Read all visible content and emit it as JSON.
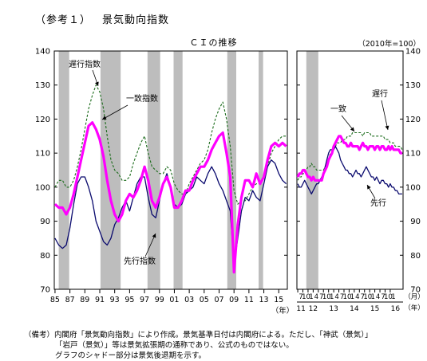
{
  "page": {
    "ref": "（参考１）",
    "title": "景気動向指数",
    "chart_heading": "ＣＩの推移",
    "base_note": "（2010年=100）",
    "year_unit": "（年）",
    "month_unit": "（月）",
    "notes": [
      "（備考）内閣府「景気動向指数」により作成。景気基準日付は内閣府による。ただし、「神武（景気）」",
      "「岩戸（景気）」等は景気拡張期の通称であり、公式のものではない。",
      "グラフのシャドー部分は景気後退期を示す。"
    ]
  },
  "colors": {
    "coincident": "#ff00ff",
    "lagging": "#1a6b1a",
    "leading": "#0a0a6e",
    "shade": "#bdbdbd"
  },
  "chart_data": [
    {
      "type": "line",
      "title": "ＣＩの推移",
      "x": [
        1985.0,
        1985.5,
        1986.0,
        1986.5,
        1987.0,
        1987.5,
        1988.0,
        1988.5,
        1989.0,
        1989.5,
        1990.0,
        1990.5,
        1991.0,
        1991.5,
        1992.0,
        1992.5,
        1993.0,
        1993.5,
        1994.0,
        1994.5,
        1995.0,
        1995.5,
        1996.0,
        1996.5,
        1997.0,
        1997.5,
        1998.0,
        1998.5,
        1999.0,
        1999.5,
        2000.0,
        2000.5,
        2001.0,
        2001.5,
        2002.0,
        2002.5,
        2003.0,
        2003.5,
        2004.0,
        2004.5,
        2005.0,
        2005.5,
        2006.0,
        2006.5,
        2007.0,
        2007.5,
        2008.0,
        2008.5,
        2009.0,
        2009.5,
        2010.0,
        2010.5,
        2011.0,
        2011.5,
        2012.0,
        2012.5,
        2013.0,
        2013.5,
        2014.0,
        2014.5,
        2015.0,
        2015.5,
        2016.0
      ],
      "x_tick_labels": [
        "85",
        "87",
        "89",
        "91",
        "93",
        "95",
        "97",
        "99",
        "01",
        "03",
        "05",
        "07",
        "09",
        "11",
        "13",
        "15"
      ],
      "ylim": [
        70,
        140
      ],
      "y_ticks": [
        70,
        80,
        90,
        100,
        110,
        120,
        130,
        140
      ],
      "recessions": [
        [
          1985.5,
          1986.9
        ],
        [
          1991.1,
          1993.8
        ],
        [
          1997.4,
          1999.1
        ],
        [
          2000.9,
          2002.1
        ],
        [
          2008.1,
          2009.3
        ],
        [
          2012.3,
          2012.9
        ]
      ],
      "series": [
        {
          "name": "一致指数",
          "values": [
            95,
            94,
            94,
            92,
            94,
            98,
            103,
            108,
            113,
            118,
            119,
            117,
            114,
            109,
            102,
            96,
            92,
            90,
            92,
            96,
            98,
            97,
            99,
            102,
            106,
            102,
            96,
            94,
            97,
            101,
            103,
            100,
            94,
            94,
            96,
            99,
            99,
            102,
            104,
            106,
            106,
            108,
            111,
            113,
            115,
            116,
            110,
            103,
            75,
            89,
            97,
            102,
            102,
            100,
            104,
            101,
            103,
            108,
            112,
            113,
            112,
            113,
            112
          ]
        },
        {
          "name": "遅行指数",
          "values": [
            100,
            102,
            102,
            100,
            100,
            102,
            106,
            111,
            117,
            123,
            127,
            130,
            128,
            123,
            115,
            108,
            105,
            104,
            102,
            102,
            103,
            107,
            110,
            113,
            115,
            110,
            106,
            105,
            104,
            104,
            106,
            105,
            101,
            99,
            98,
            98,
            101,
            103,
            105,
            107,
            108,
            111,
            116,
            120,
            123,
            125,
            120,
            112,
            99,
            95,
            96,
            96,
            98,
            100,
            101,
            101,
            103,
            106,
            110,
            112,
            114,
            115,
            115
          ]
        },
        {
          "name": "先行指数",
          "values": [
            85,
            83,
            82,
            83,
            88,
            95,
            101,
            103,
            103,
            100,
            96,
            90,
            87,
            84,
            83,
            85,
            89,
            91,
            94,
            96,
            93,
            97,
            101,
            103,
            103,
            97,
            92,
            91,
            96,
            101,
            104,
            100,
            95,
            94,
            95,
            98,
            99,
            100,
            103,
            102,
            101,
            104,
            106,
            104,
            101,
            99,
            96,
            93,
            77,
            85,
            93,
            97,
            96,
            99,
            97,
            96,
            101,
            106,
            108,
            107,
            104,
            102,
            101
          ]
        }
      ],
      "annotations": [
        "遅行指数",
        "一致指数",
        "先行指数"
      ]
    },
    {
      "type": "line",
      "x": [
        0,
        1,
        2,
        3,
        4,
        5,
        6,
        7,
        8,
        9,
        10,
        11,
        12,
        13,
        14,
        15,
        16,
        17,
        18,
        19,
        20,
        21,
        22,
        23,
        24,
        25,
        26,
        27,
        28,
        29,
        30,
        31,
        32,
        33,
        34,
        35,
        36,
        37,
        38,
        39,
        40,
        41,
        42,
        43,
        44,
        45,
        46,
        47,
        48,
        49,
        50,
        51,
        52,
        53,
        54,
        55,
        56,
        57,
        58,
        59,
        60,
        61
      ],
      "x_tick_labels": [
        "7",
        "10",
        "1",
        "4",
        "7",
        "10",
        "1",
        "4",
        "7",
        "10",
        "1",
        "4",
        "7",
        "10",
        "1",
        "4",
        "7",
        "10",
        "1"
      ],
      "x_year_labels": [
        "11",
        "12",
        "13",
        "14",
        "15",
        "16"
      ],
      "ylim": [
        70,
        140
      ],
      "y_ticks": [
        70,
        80,
        90,
        100,
        110,
        120,
        130,
        140
      ],
      "recessions": [
        [
          5,
          12
        ]
      ],
      "series": [
        {
          "name": "一致",
          "values": [
            103,
            104,
            104,
            105,
            105,
            104,
            103,
            103,
            102,
            103,
            102,
            102,
            102,
            102,
            102,
            104,
            105,
            106,
            108,
            109,
            110,
            112,
            113,
            114,
            115,
            115,
            114,
            113,
            113,
            112,
            112,
            113,
            112,
            112,
            112,
            112,
            111,
            112,
            113,
            112,
            112,
            111,
            112,
            112,
            112,
            111,
            112,
            112,
            111,
            112,
            112,
            111,
            111,
            112,
            111,
            112,
            111,
            111,
            111,
            111,
            110,
            110
          ]
        },
        {
          "name": "遅行",
          "values": [
            102,
            103,
            103,
            104,
            104,
            105,
            106,
            106,
            107,
            106,
            106,
            105,
            105,
            105,
            105,
            105,
            106,
            107,
            108,
            110,
            110,
            111,
            112,
            113,
            113,
            113,
            114,
            114,
            114,
            115,
            115,
            115,
            116,
            116,
            116,
            116,
            116,
            116,
            115,
            116,
            116,
            116,
            116,
            115,
            115,
            115,
            115,
            115,
            115,
            115,
            115,
            114,
            114,
            114,
            113,
            113,
            113,
            112,
            112,
            112,
            112,
            111
          ]
        },
        {
          "name": "先行",
          "values": [
            101,
            100,
            100,
            101,
            102,
            101,
            100,
            99,
            98,
            99,
            100,
            101,
            101,
            102,
            103,
            104,
            106,
            108,
            110,
            111,
            111,
            111,
            112,
            111,
            110,
            108,
            107,
            106,
            105,
            105,
            104,
            104,
            103,
            104,
            105,
            104,
            104,
            103,
            104,
            105,
            106,
            105,
            104,
            103,
            103,
            102,
            103,
            102,
            101,
            102,
            102,
            101,
            101,
            100,
            101,
            100,
            100,
            99,
            99,
            98,
            98,
            98
          ]
        }
      ],
      "annotations": [
        "遅行",
        "一致",
        "先行"
      ]
    }
  ]
}
